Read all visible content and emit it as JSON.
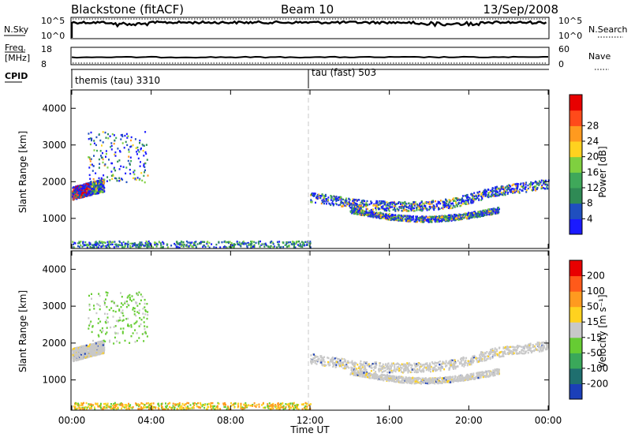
{
  "header": {
    "station": "Blackstone (fitACF)",
    "beam": "Beam 10",
    "date": "13/Sep/2008"
  },
  "strips": {
    "nsky_label": "N.Sky",
    "nsky_ticks": [
      "10^5",
      "10^0"
    ],
    "nsearch_label": "N.Search",
    "nsearch_ticks": [
      "10^5",
      "10^0"
    ],
    "freq_label_1": "Freq.",
    "freq_label_2": "[MHz]",
    "freq_ticks": [
      "18",
      "8"
    ],
    "nave_label": "Nave",
    "nave_ticks": [
      "60",
      "0"
    ],
    "cpid_label": "CPID",
    "cpid_segments": [
      {
        "label": "themis (tau) 3310",
        "start_hour": 0
      },
      {
        "label": "tau (fast) 503",
        "start_hour": 12
      }
    ]
  },
  "chart_data": [
    {
      "type": "heatmap",
      "panel": "power",
      "ylabel": "Slant Range [km]",
      "yticks": [
        "1000",
        "2000",
        "3000",
        "4000"
      ],
      "ylim": [
        180,
        4500
      ],
      "xlim": [
        0,
        24
      ],
      "colorbar_label": "Power [dB]",
      "colorbar_ticks": [
        "4",
        "8",
        "12",
        "16",
        "20",
        "24",
        "28"
      ],
      "colorbar_colors": [
        "#1a1aff",
        "#1f4fbf",
        "#2f8a55",
        "#3fa85a",
        "#7fd03f",
        "#ffd21f",
        "#ff9a1f",
        "#ff4a1a",
        "#e80000"
      ],
      "features": [
        {
          "name": "morning band",
          "x": [
            0.0,
            1.6
          ],
          "range_km": [
            1500,
            2000
          ]
        },
        {
          "name": "morning high scatter",
          "x": [
            0.8,
            3.8
          ],
          "range_km": [
            2000,
            3400
          ]
        },
        {
          "name": "near-range ground band",
          "x": [
            0.0,
            12.0
          ],
          "range_km": [
            180,
            400
          ]
        },
        {
          "name": "afternoon main band",
          "x": [
            12.0,
            24.0
          ],
          "range_km": [
            1300,
            2000
          ]
        },
        {
          "name": "afternoon lower band",
          "x": [
            14.0,
            21.5
          ],
          "range_km": [
            900,
            1400
          ]
        }
      ]
    },
    {
      "type": "heatmap",
      "panel": "velocity",
      "ylabel": "Slant Range [km]",
      "yticks": [
        "1000",
        "2000",
        "3000",
        "4000"
      ],
      "ylim": [
        180,
        4500
      ],
      "xlim": [
        0,
        24
      ],
      "xlabel": "Time UT",
      "xticks": [
        "00:00",
        "04:00",
        "08:00",
        "12:00",
        "16:00",
        "20:00",
        "00:00"
      ],
      "colorbar_label": "Velocity [m s⁻¹]",
      "colorbar_ticks": [
        "200",
        "100",
        "50",
        "15",
        "-15",
        "-50",
        "-100",
        "-200"
      ],
      "colorbar_colors": [
        "#1b3fb8",
        "#1f6f6f",
        "#3aa85a",
        "#66cc33",
        "#c8c8c8",
        "#ffd21f",
        "#ff9a1f",
        "#ff5a1a",
        "#e80000"
      ],
      "features": [
        {
          "name": "morning band (grey, near zero)",
          "x": [
            0.0,
            1.6
          ],
          "range_km": [
            1500,
            2000
          ]
        },
        {
          "name": "morning high scatter (green)",
          "x": [
            0.8,
            3.8
          ],
          "range_km": [
            2000,
            3400
          ]
        },
        {
          "name": "near-range band (orange)",
          "x": [
            0.0,
            12.0
          ],
          "range_km": [
            180,
            400
          ]
        },
        {
          "name": "afternoon main band (grey)",
          "x": [
            12.0,
            24.0
          ],
          "range_km": [
            1300,
            2000
          ]
        },
        {
          "name": "afternoon lower band (grey)",
          "x": [
            14.0,
            21.5
          ],
          "range_km": [
            900,
            1400
          ]
        }
      ]
    }
  ]
}
